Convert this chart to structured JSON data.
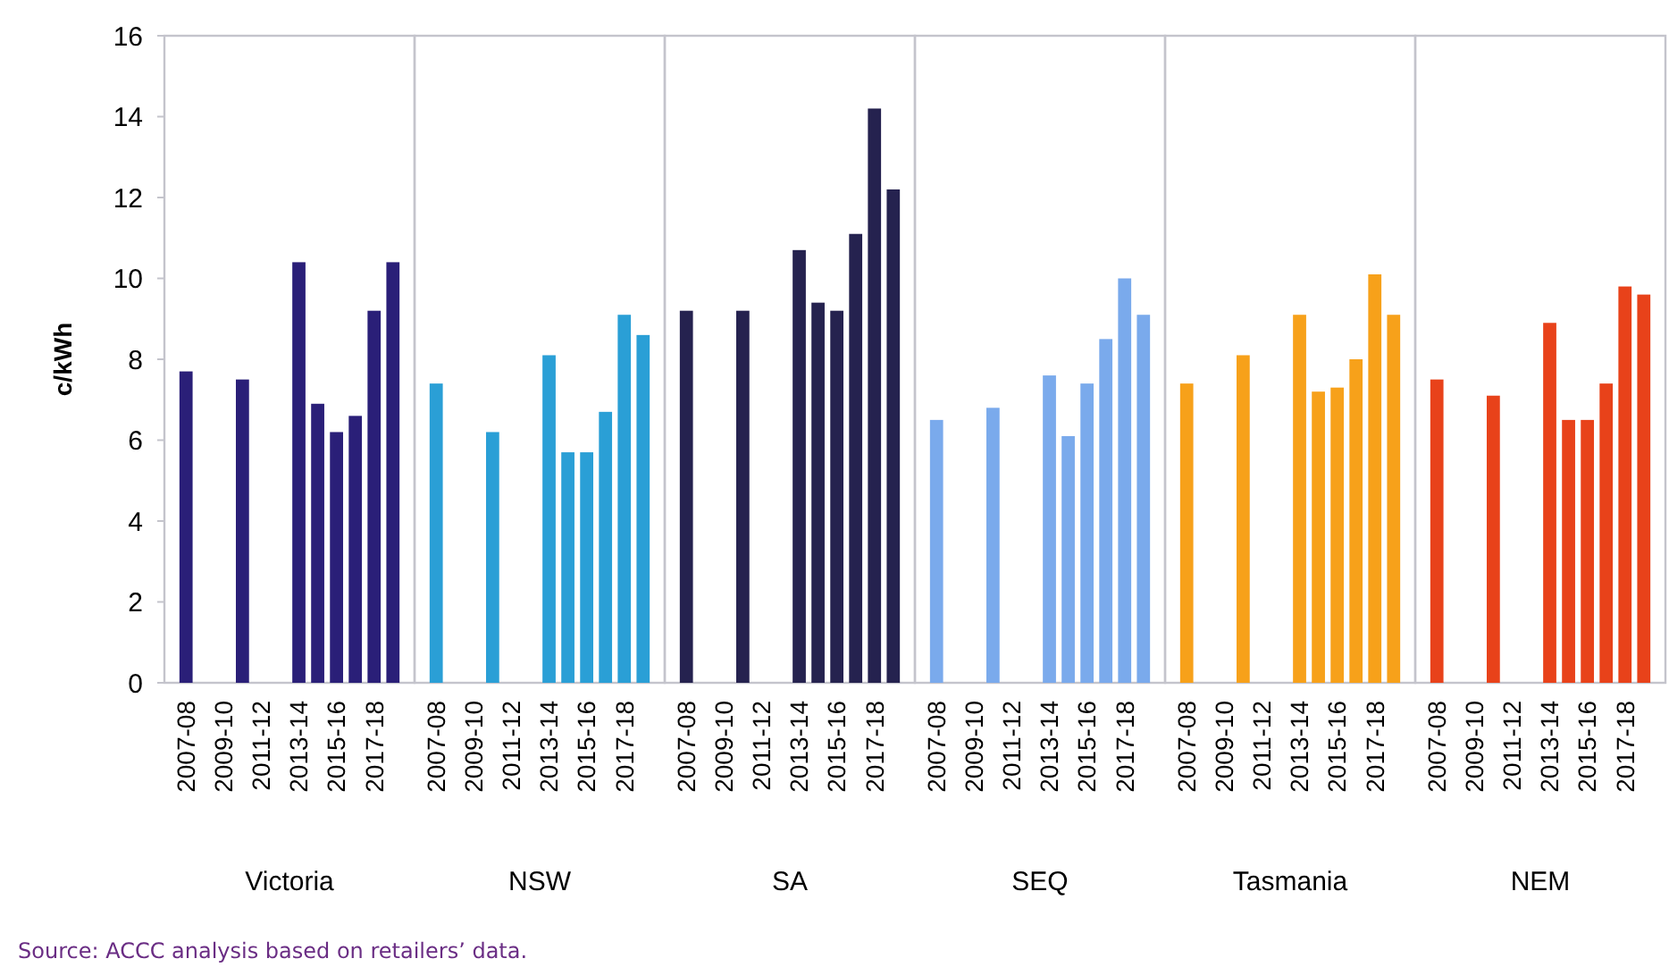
{
  "chart_data": [
    {
      "type": "bar",
      "xlabel": "Victoria",
      "ylabel": "c/kWh",
      "categories": [
        "2007-08",
        null,
        "2009-10",
        null,
        "2011-12",
        null,
        "2013-14",
        null,
        "2015-16",
        null,
        "2017-18",
        null
      ],
      "values": [
        7.7,
        null,
        null,
        7.5,
        null,
        null,
        10.4,
        6.9,
        6.2,
        6.6,
        9.2,
        10.4
      ],
      "color": "#2a1f78",
      "ylim": [
        0,
        16
      ],
      "yticks": [
        0,
        2,
        4,
        6,
        8,
        10,
        12,
        14,
        16
      ],
      "annotations": [
        "Source: ACCC analysis based on retailers’ data."
      ]
    },
    {
      "type": "bar",
      "xlabel": "NSW",
      "categories": [
        "2007-08",
        null,
        "2009-10",
        null,
        "2011-12",
        null,
        "2013-14",
        null,
        "2015-16",
        null,
        "2017-18",
        null
      ],
      "values": [
        7.4,
        null,
        null,
        6.2,
        null,
        null,
        8.1,
        5.7,
        5.7,
        6.7,
        9.1,
        8.6
      ],
      "color": "#2a9fd6",
      "ylim": [
        0,
        16
      ],
      "tick_labels": "x"
    },
    {
      "type": "bar",
      "xlabel": "SA",
      "categories": [
        "2007-08",
        null,
        "2009-10",
        null,
        "2011-12",
        null,
        "2013-14",
        null,
        "2015-16",
        null,
        "2017-18",
        null
      ],
      "values": [
        9.2,
        null,
        null,
        9.2,
        null,
        null,
        10.7,
        9.4,
        9.2,
        11.1,
        14.2,
        12.2
      ],
      "color": "#25224f",
      "ylim": [
        0,
        16
      ],
      "tick_labels": "x"
    },
    {
      "type": "bar",
      "xlabel": "SEQ",
      "categories": [
        "2007-08",
        null,
        "2009-10",
        null,
        "2011-12",
        null,
        "2013-14",
        null,
        "2015-16",
        null,
        "2017-18",
        null
      ],
      "values": [
        6.5,
        null,
        null,
        6.8,
        null,
        null,
        7.6,
        6.1,
        7.4,
        8.5,
        10.0,
        9.1
      ],
      "color": "#7aaaec",
      "ylim": [
        0,
        16
      ],
      "tick_labels": "x"
    },
    {
      "type": "bar",
      "xlabel": "Tasmania",
      "categories": [
        "2007-08",
        null,
        "2009-10",
        null,
        "2011-12",
        null,
        "2013-14",
        null,
        "2015-16",
        null,
        "2017-18",
        null
      ],
      "values": [
        7.4,
        null,
        null,
        8.1,
        null,
        null,
        9.1,
        7.2,
        7.3,
        8.0,
        10.1,
        9.1
      ],
      "color": "#f7a11a",
      "ylim": [
        0,
        16
      ],
      "tick_labels": "x"
    },
    {
      "type": "bar",
      "xlabel": "NEM",
      "categories": [
        "2007-08",
        null,
        "2009-10",
        null,
        "2011-12",
        null,
        "2013-14",
        null,
        "2015-16",
        null,
        "2017-18",
        null
      ],
      "values": [
        7.5,
        null,
        null,
        7.1,
        null,
        null,
        8.9,
        6.5,
        6.5,
        7.4,
        9.8,
        9.6
      ],
      "color": "#e8421a",
      "ylim": [
        0,
        16
      ],
      "tick_labels": "x"
    }
  ]
}
